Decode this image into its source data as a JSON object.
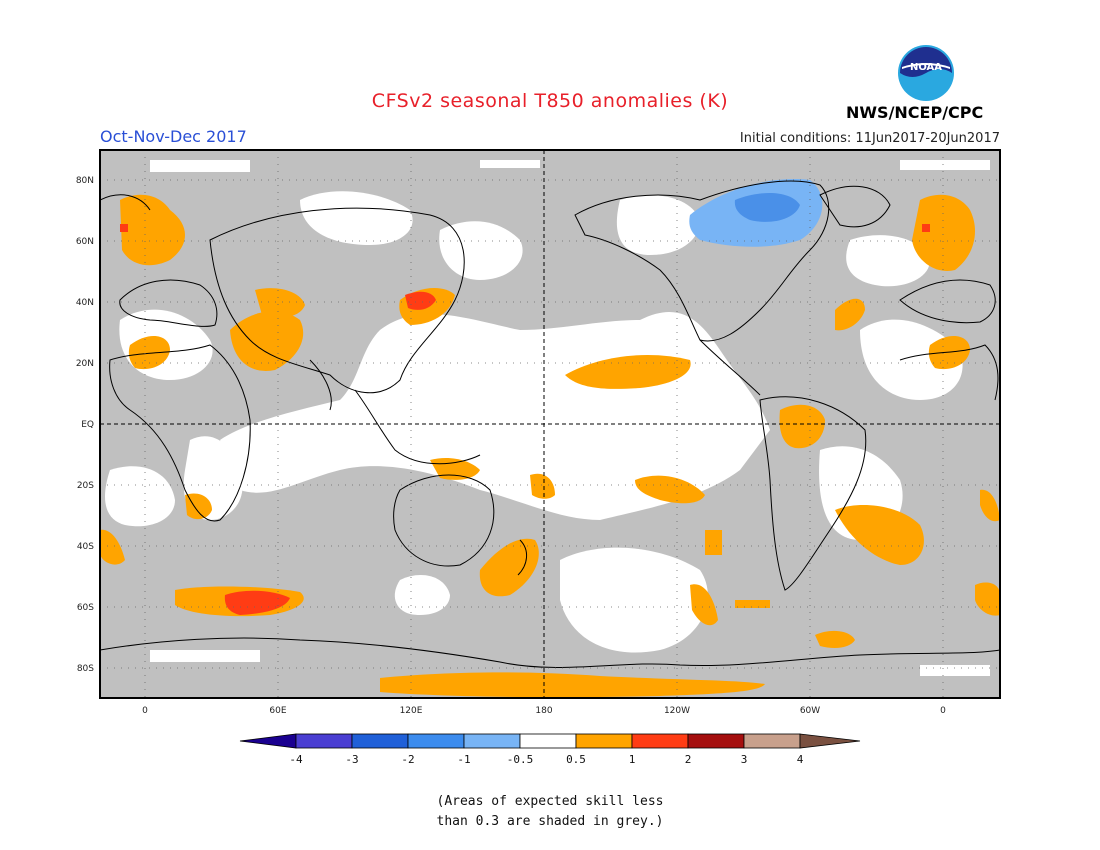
{
  "header": {
    "title": "CFSv2 seasonal T850 anomalies (K)",
    "period": "Oct-Nov-Dec 2017",
    "initial_conditions": "Initial conditions: 11Jun2017-20Jun2017",
    "agency": "NWS/NCEP/CPC",
    "logo_text": "NOAA"
  },
  "map": {
    "lat_labels": [
      "80N",
      "60N",
      "40N",
      "20N",
      "EQ",
      "20S",
      "40S",
      "60S",
      "80S"
    ],
    "lon_labels": [
      "0",
      "60E",
      "120E",
      "180",
      "120W",
      "60W",
      "0"
    ],
    "colors": {
      "grey_mask": "#c0c0c0",
      "orange": "#ffa400",
      "red": "#ff3c14",
      "light_blue": "#78b4f5",
      "mid_blue": "#4a90e8"
    }
  },
  "colorbar": {
    "tick_labels": [
      "-4",
      "-3",
      "-2",
      "-1",
      "-0.5",
      "0.5",
      "1",
      "2",
      "3",
      "4"
    ],
    "colors": [
      "#1a0090",
      "#4a3ed2",
      "#2060d8",
      "#3c8cee",
      "#78b4f5",
      "#ffffff",
      "#ffa400",
      "#ff3c14",
      "#a50f0f",
      "#c8a08c",
      "#7a5040"
    ]
  },
  "footer": {
    "note_line1": "(Areas of expected skill less",
    "note_line2": "than 0.3 are shaded in grey.)"
  }
}
